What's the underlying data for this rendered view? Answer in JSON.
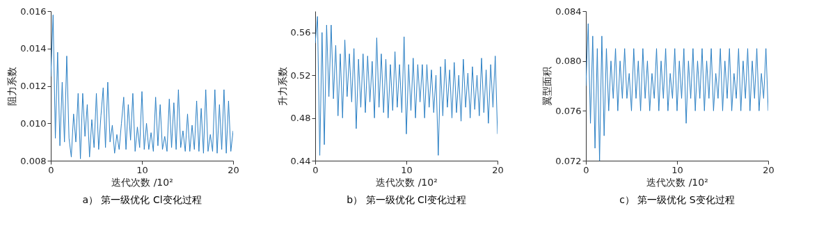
{
  "chart_data": [
    {
      "type": "line",
      "title": "a） 第一级优化 Cl变化过程",
      "xlabel": "迭代次数 /10²",
      "ylabel": "阻力系数",
      "xlim": [
        0,
        20
      ],
      "xticks": [
        0,
        10,
        20
      ],
      "ylim": [
        0.008,
        0.016
      ],
      "yticks": [
        0.008,
        {
          "value": 0.01,
          "label": "0.010"
        },
        0.012,
        0.014,
        0.016
      ],
      "grid": false,
      "x": [
        0,
        0.25,
        0.5,
        0.75,
        1,
        1.25,
        1.5,
        1.75,
        2,
        2.25,
        2.5,
        2.75,
        3,
        3.25,
        3.5,
        3.75,
        4,
        4.25,
        4.5,
        4.75,
        5,
        5.25,
        5.5,
        5.75,
        6,
        6.25,
        6.5,
        6.75,
        7,
        7.25,
        7.5,
        7.75,
        8,
        8.25,
        8.5,
        8.75,
        9,
        9.25,
        9.5,
        9.75,
        10,
        10.25,
        10.5,
        10.75,
        11,
        11.25,
        11.5,
        11.75,
        12,
        12.25,
        12.5,
        12.75,
        13,
        13.25,
        13.5,
        13.75,
        14,
        14.25,
        14.5,
        14.75,
        15,
        15.25,
        15.5,
        15.75,
        16,
        16.25,
        16.5,
        16.75,
        17,
        17.25,
        17.5,
        17.75,
        18,
        18.25,
        18.5,
        18.75,
        19,
        19.25,
        19.5,
        19.75,
        20
      ],
      "series": [
        {
          "color": "#2a7fc4",
          "values": [
            0.0125,
            0.0158,
            0.0092,
            0.0138,
            0.0088,
            0.0122,
            0.009,
            0.0136,
            0.0092,
            0.0082,
            0.0105,
            0.009,
            0.0116,
            0.0081,
            0.0116,
            0.0093,
            0.011,
            0.0082,
            0.0102,
            0.0087,
            0.0116,
            0.0086,
            0.0104,
            0.0119,
            0.0087,
            0.0122,
            0.009,
            0.0099,
            0.0084,
            0.0094,
            0.0086,
            0.01,
            0.0114,
            0.0086,
            0.011,
            0.0091,
            0.0116,
            0.0085,
            0.0098,
            0.0087,
            0.0117,
            0.0086,
            0.01,
            0.0086,
            0.0095,
            0.0085,
            0.0114,
            0.0088,
            0.011,
            0.0086,
            0.0093,
            0.0085,
            0.0113,
            0.0087,
            0.0111,
            0.0086,
            0.0118,
            0.0087,
            0.0096,
            0.0085,
            0.0105,
            0.0085,
            0.0099,
            0.0086,
            0.0112,
            0.0085,
            0.0108,
            0.0084,
            0.0118,
            0.0085,
            0.0094,
            0.0085,
            0.0118,
            0.0084,
            0.011,
            0.0086,
            0.0118,
            0.0084,
            0.0112,
            0.0085,
            0.0096
          ]
        }
      ]
    },
    {
      "type": "line",
      "title": "b） 第一级优化 Cl变化过程",
      "xlabel": "迭代次数 /10²",
      "ylabel": "升力系数",
      "xlim": [
        0,
        20
      ],
      "xticks": [
        0,
        10,
        20
      ],
      "ylim": [
        0.44,
        0.58
      ],
      "yticks": [
        0.44,
        0.48,
        0.52,
        0.56
      ],
      "grid": false,
      "x": [
        0,
        0.25,
        0.5,
        0.75,
        1,
        1.25,
        1.5,
        1.75,
        2,
        2.25,
        2.5,
        2.75,
        3,
        3.25,
        3.5,
        3.75,
        4,
        4.25,
        4.5,
        4.75,
        5,
        5.25,
        5.5,
        5.75,
        6,
        6.25,
        6.5,
        6.75,
        7,
        7.25,
        7.5,
        7.75,
        8,
        8.25,
        8.5,
        8.75,
        9,
        9.25,
        9.5,
        9.75,
        10,
        10.25,
        10.5,
        10.75,
        11,
        11.25,
        11.5,
        11.75,
        12,
        12.25,
        12.5,
        12.75,
        13,
        13.25,
        13.5,
        13.75,
        14,
        14.25,
        14.5,
        14.75,
        15,
        15.25,
        15.5,
        15.75,
        16,
        16.25,
        16.5,
        16.75,
        17,
        17.25,
        17.5,
        17.75,
        18,
        18.25,
        18.5,
        18.75,
        19,
        19.25,
        19.5,
        19.75,
        20
      ],
      "series": [
        {
          "color": "#2a7fc4",
          "values": [
            0.55,
            0.575,
            0.445,
            0.56,
            0.455,
            0.567,
            0.5,
            0.567,
            0.498,
            0.548,
            0.482,
            0.54,
            0.48,
            0.553,
            0.5,
            0.54,
            0.495,
            0.545,
            0.47,
            0.535,
            0.49,
            0.54,
            0.485,
            0.538,
            0.495,
            0.533,
            0.48,
            0.555,
            0.49,
            0.54,
            0.485,
            0.535,
            0.48,
            0.53,
            0.487,
            0.542,
            0.49,
            0.53,
            0.485,
            0.556,
            0.465,
            0.53,
            0.487,
            0.536,
            0.48,
            0.53,
            0.495,
            0.53,
            0.48,
            0.53,
            0.49,
            0.525,
            0.485,
            0.52,
            0.445,
            0.528,
            0.482,
            0.535,
            0.49,
            0.525,
            0.48,
            0.532,
            0.485,
            0.52,
            0.477,
            0.535,
            0.49,
            0.522,
            0.48,
            0.528,
            0.488,
            0.52,
            0.482,
            0.536,
            0.485,
            0.525,
            0.475,
            0.53,
            0.49,
            0.538,
            0.465
          ]
        }
      ]
    },
    {
      "type": "line",
      "title": "c） 第一级优化 S变化过程",
      "xlabel": "迭代次数 /10²",
      "ylabel": "翼型面积",
      "xlim": [
        0,
        20
      ],
      "xticks": [
        0,
        10,
        20
      ],
      "ylim": [
        0.072,
        0.084
      ],
      "yticks": [
        0.072,
        0.076,
        {
          "value": 0.08,
          "label": "0.080"
        },
        0.084
      ],
      "grid": false,
      "x": [
        0,
        0.25,
        0.5,
        0.75,
        1,
        1.25,
        1.5,
        1.75,
        2,
        2.25,
        2.5,
        2.75,
        3,
        3.25,
        3.5,
        3.75,
        4,
        4.25,
        4.5,
        4.75,
        5,
        5.25,
        5.5,
        5.75,
        6,
        6.25,
        6.5,
        6.75,
        7,
        7.25,
        7.5,
        7.75,
        8,
        8.25,
        8.5,
        8.75,
        9,
        9.25,
        9.5,
        9.75,
        10,
        10.25,
        10.5,
        10.75,
        11,
        11.25,
        11.5,
        11.75,
        12,
        12.25,
        12.5,
        12.75,
        13,
        13.25,
        13.5,
        13.75,
        14,
        14.25,
        14.5,
        14.75,
        15,
        15.25,
        15.5,
        15.75,
        16,
        16.25,
        16.5,
        16.75,
        17,
        17.25,
        17.5,
        17.75,
        18,
        18.25,
        18.5,
        18.75,
        19,
        19.25,
        19.5,
        19.75,
        20
      ],
      "series": [
        {
          "color": "#2a7fc4",
          "values": [
            0.078,
            0.083,
            0.075,
            0.082,
            0.073,
            0.081,
            0.072,
            0.082,
            0.074,
            0.081,
            0.076,
            0.08,
            0.077,
            0.081,
            0.076,
            0.08,
            0.077,
            0.081,
            0.077,
            0.079,
            0.076,
            0.081,
            0.077,
            0.08,
            0.076,
            0.081,
            0.077,
            0.08,
            0.076,
            0.079,
            0.077,
            0.081,
            0.076,
            0.08,
            0.077,
            0.081,
            0.076,
            0.079,
            0.077,
            0.081,
            0.076,
            0.08,
            0.077,
            0.081,
            0.075,
            0.08,
            0.077,
            0.081,
            0.076,
            0.08,
            0.077,
            0.081,
            0.076,
            0.08,
            0.077,
            0.081,
            0.076,
            0.079,
            0.077,
            0.081,
            0.076,
            0.08,
            0.077,
            0.081,
            0.076,
            0.079,
            0.077,
            0.081,
            0.076,
            0.08,
            0.077,
            0.081,
            0.076,
            0.08,
            0.077,
            0.081,
            0.076,
            0.079,
            0.077,
            0.081,
            0.076
          ]
        }
      ]
    }
  ]
}
